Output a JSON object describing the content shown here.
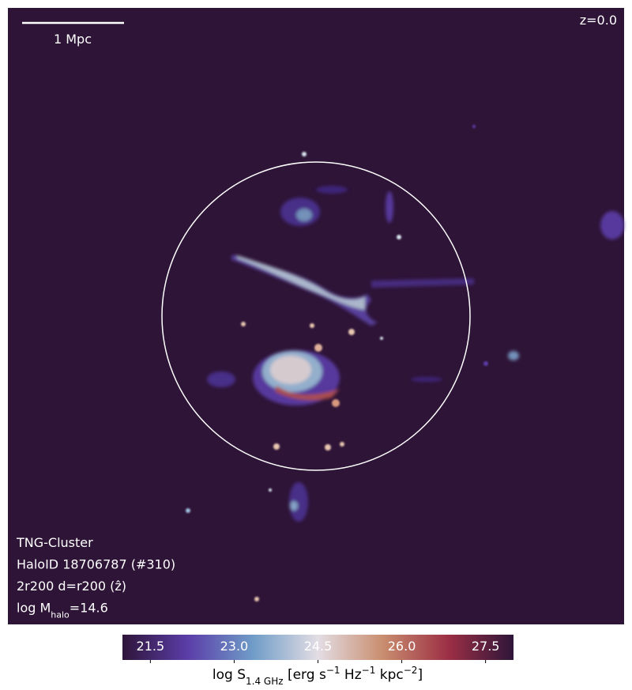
{
  "chart_data": {
    "type": "map",
    "scale_bar_label": "1 Mpc",
    "redshift_label": "z=0.0",
    "annotations": [
      [
        {
          "text": "TNG-Cluster"
        }
      ],
      [
        {
          "text": "HaloID 18706787 (#310)"
        }
      ],
      [
        {
          "text": "2r200 d=r200 (ẑ)"
        }
      ],
      [
        {
          "text": "log M"
        },
        {
          "text": "halo",
          "sub": true
        },
        {
          "text": "=14.6"
        }
      ]
    ],
    "colorbar": {
      "clim": [
        21.0,
        28.0
      ],
      "ticks": [
        21.5,
        {
          "value": 23,
          "label": "23.0"
        },
        24.5,
        {
          "value": 26,
          "label": "26.0"
        },
        27.5
      ],
      "colormap": [
        "#2e1539",
        "#5b3da8",
        "#6f9cc8",
        "#e3dde4",
        "#c98d6e",
        "#9c2f45",
        "#2e1539"
      ],
      "label": [
        {
          "text": "log S"
        },
        {
          "text": "1.4 GHz",
          "sub": true
        },
        {
          "text": " [erg s"
        },
        {
          "text": "−1",
          "sup": true
        },
        {
          "text": " Hz"
        },
        {
          "text": "−1",
          "sup": true
        },
        {
          "text": " kpc"
        },
        {
          "text": "−2",
          "sup": true
        },
        {
          "text": "]"
        }
      ]
    }
  }
}
